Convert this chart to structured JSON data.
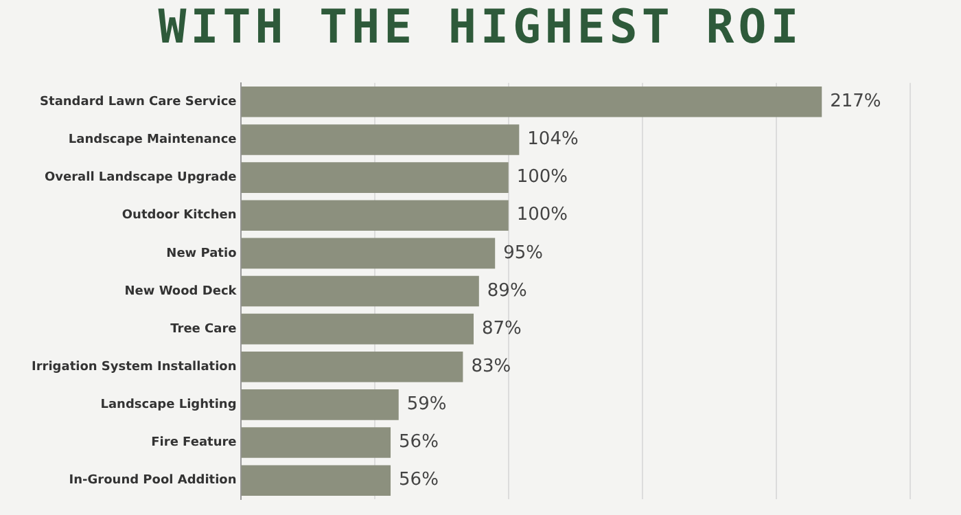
{
  "chart_data": {
    "type": "bar",
    "orientation": "horizontal",
    "title": "WITH THE HIGHEST ROI",
    "categories": [
      "Standard Lawn Care Service",
      "Landscape Maintenance",
      "Overall Landscape Upgrade",
      "Outdoor Kitchen",
      "New Patio",
      "New Wood Deck",
      "Tree Care",
      "Irrigation System Installation",
      "Landscape Lighting",
      "Fire Feature",
      "In-Ground Pool Addition"
    ],
    "values": [
      217,
      104,
      100,
      100,
      95,
      89,
      87,
      83,
      59,
      56,
      56
    ],
    "value_labels": [
      "217%",
      "104%",
      "100%",
      "100%",
      "95%",
      "89%",
      "87%",
      "83%",
      "59%",
      "56%",
      "56%"
    ],
    "color": "#8c907e",
    "xlim": [
      0,
      250
    ],
    "xticks": [
      {
        "value": 0,
        "label": null
      },
      {
        "value": 50,
        "label": null
      },
      {
        "value": 100,
        "label": null
      },
      {
        "value": 150,
        "label": null
      },
      {
        "value": 200,
        "label": null
      },
      {
        "value": 250,
        "label": null
      }
    ],
    "grid": "x",
    "tick_labels": "y"
  }
}
